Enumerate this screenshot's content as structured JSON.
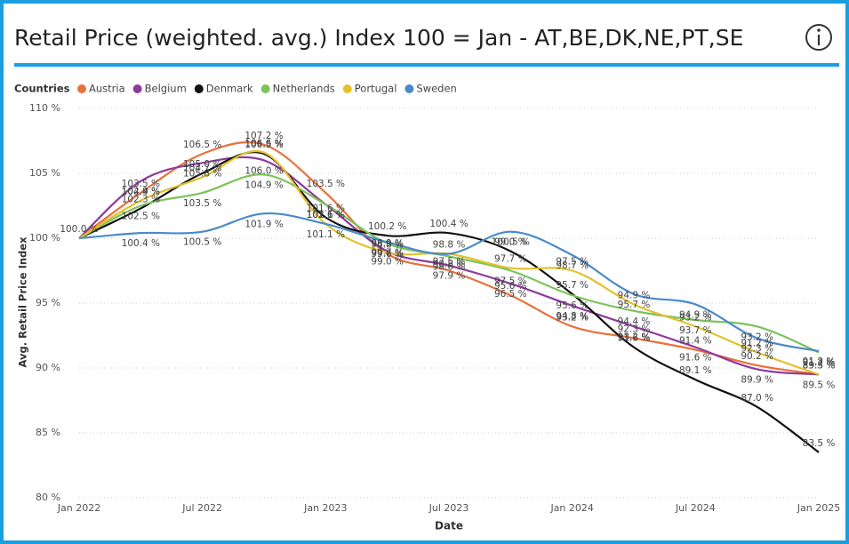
{
  "chart_data": {
    "type": "line",
    "title": "Retail Price (weighted. avg.) Index 100 = Jan - AT,BE,DK,NE,PT,SE",
    "legend_title": "Countries",
    "xlabel": "Date",
    "ylabel": "Avg. Retail Price Index",
    "x": [
      "2022-01",
      "2022-04",
      "2022-07",
      "2022-10",
      "2023-01",
      "2023-04",
      "2023-07",
      "2023-10",
      "2024-01",
      "2024-04",
      "2024-07",
      "2024-10",
      "2025-01"
    ],
    "xlim": [
      "2022-01",
      "2025-01"
    ],
    "xticks": [
      {
        "value": "2022-01",
        "label": "Jan 2022"
      },
      {
        "value": "2022-07",
        "label": "Jul 2022"
      },
      {
        "value": "2023-01",
        "label": "Jan 2023"
      },
      {
        "value": "2023-07",
        "label": "Jul 2023"
      },
      {
        "value": "2024-01",
        "label": "Jan 2024"
      },
      {
        "value": "2024-07",
        "label": "Jul 2024"
      },
      {
        "value": "2025-01",
        "label": "Jan 2025"
      }
    ],
    "ylim": [
      80,
      110
    ],
    "yticks": [
      {
        "value": 80,
        "label": "80 %"
      },
      {
        "value": 85,
        "label": "85 %"
      },
      {
        "value": 90,
        "label": "90 %"
      },
      {
        "value": 95,
        "label": "95 %"
      },
      {
        "value": 100,
        "label": "100 %"
      },
      {
        "value": 105,
        "label": "105 %"
      },
      {
        "value": 110,
        "label": "110 %"
      }
    ],
    "grid": true,
    "series": [
      {
        "name": "Austria",
        "color": "#e8703a",
        "values": [
          100,
          103.5,
          106.5,
          107.2,
          103.5,
          98.8,
          97.5,
          95.6,
          93.2,
          92.3,
          91.4,
          90.2,
          89.5
        ],
        "value_labels": [
          "100.0 %",
          "103.5 %",
          "106.5 %",
          "107.2 %",
          "103.5 %",
          "98.8 %",
          "97.5 %",
          "95.6 %",
          "93.2 %",
          "92.3 %",
          "91.4 %",
          "90.2 %",
          "89.5 %"
        ]
      },
      {
        "name": "Belgium",
        "color": "#8e3a9e",
        "values": [
          100,
          104.4,
          105.8,
          106.0,
          102.6,
          99.0,
          97.9,
          96.5,
          94.8,
          93.2,
          91.6,
          89.9,
          89.5
        ],
        "value_labels": [
          "100.0 %",
          "104.4 %",
          "105.8 %",
          "106.0 %",
          "102.6 %",
          "99.0 %",
          "97.9 %",
          "96.5 %",
          "94.8 %",
          "93.2 %",
          "91.6 %",
          "89.9 %",
          "89.5 %"
        ]
      },
      {
        "name": "Denmark",
        "color": "#111111",
        "values": [
          100,
          102.3,
          105.0,
          106.5,
          101.6,
          100.2,
          100.4,
          99.0,
          95.7,
          91.6,
          89.1,
          87.0,
          83.5
        ],
        "value_labels": [
          "100.0 %",
          "102.3 %",
          "105.0 %",
          "106.5 %",
          "101.6 %",
          "100.2 %",
          "100.4 %",
          "99.0 %",
          "95.7 %",
          "91.6 %",
          "89.1 %",
          "87.0 %",
          "83.5 %"
        ]
      },
      {
        "name": "Netherlands",
        "color": "#7cc35a",
        "values": [
          100,
          102.5,
          103.5,
          104.9,
          102.6,
          99.6,
          98.6,
          97.5,
          95.6,
          94.4,
          93.7,
          93.2,
          91.2
        ],
        "value_labels": [
          "100.0 %",
          "102.5 %",
          "103.5 %",
          "104.9 %",
          "102.6 %",
          "99.6 %",
          "98.6 %",
          "97.5 %",
          "95.6 %",
          "94.4 %",
          "93.7 %",
          "93.2 %",
          "91.2 %"
        ]
      },
      {
        "name": "Portugal",
        "color": "#e3c12a",
        "values": [
          100,
          102.9,
          104.7,
          106.6,
          101.1,
          98.9,
          98.8,
          97.7,
          97.5,
          94.9,
          93.2,
          91.2,
          89.5
        ],
        "value_labels": [
          "100.0 %",
          "102.9 %",
          "104.7 %",
          "106.6 %",
          "101.1 %",
          "98.9 %",
          "98.8 %",
          "97.7 %",
          "97.5 %",
          "94.9 %",
          "93.2 %",
          "91.2 %",
          "89.5 %"
        ]
      },
      {
        "name": "Sweden",
        "color": "#4a8ac8",
        "values": [
          100,
          100.4,
          100.5,
          101.9,
          101.1,
          99.7,
          98.8,
          100.5,
          98.7,
          95.7,
          94.9,
          92.3,
          91.3
        ],
        "value_labels": [
          "100.0 %",
          "100.4 %",
          "100.5 %",
          "101.9 %",
          "101.1 %",
          "99.7 %",
          "98.8 %",
          "100.5 %",
          "98.7 %",
          "95.7 %",
          "94.9 %",
          "92.3 %",
          "91.3 %"
        ]
      }
    ]
  }
}
